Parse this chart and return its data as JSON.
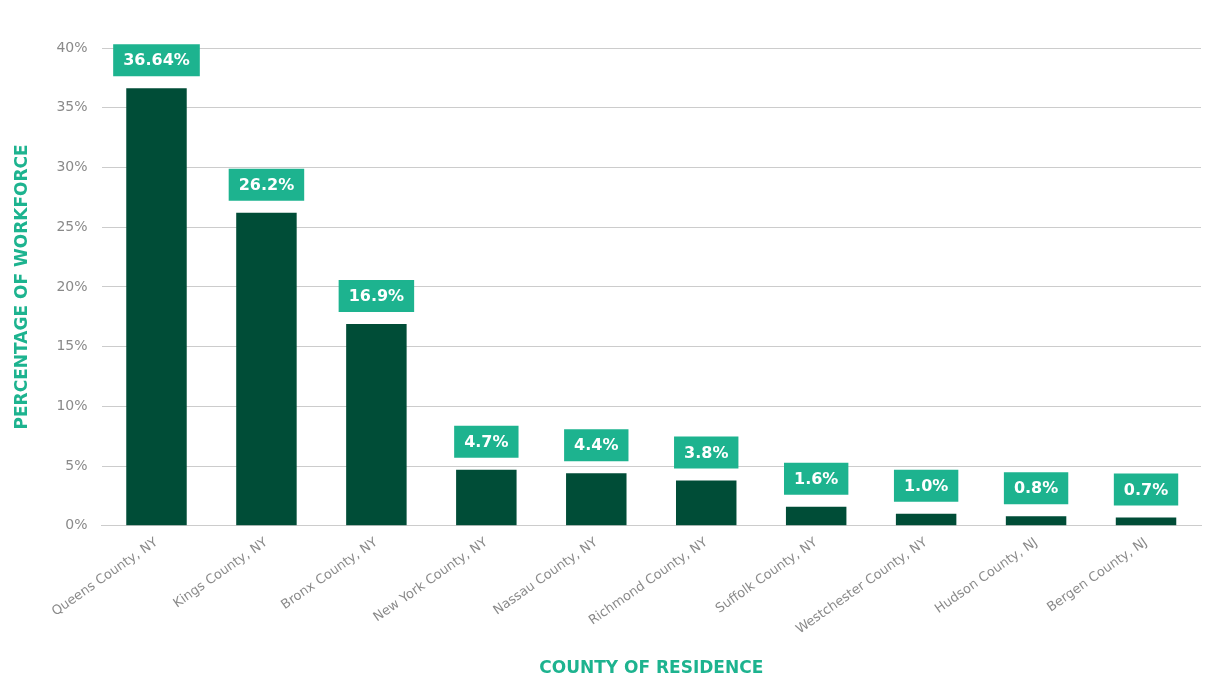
{
  "chart_data": {
    "type": "bar",
    "xlabel": "COUNTY OF RESIDENCE",
    "ylabel": "PERCENTAGE OF WORKFORCE",
    "categories": [
      "Queens County, NY",
      "Kings County, NY",
      "Bronx County, NY",
      "New York County, NY",
      "Nassau County, NY",
      "Richmond County, NY",
      "Suffolk County, NY",
      "Westchester County, NY",
      "Hudson County, NJ",
      "Bergen County, NJ"
    ],
    "values": [
      36.64,
      26.2,
      16.9,
      4.7,
      4.4,
      3.8,
      1.6,
      1.0,
      0.8,
      0.7
    ],
    "value_labels": [
      "36.64%",
      "26.2%",
      "16.9%",
      "4.7%",
      "4.4%",
      "3.8%",
      "1.6%",
      "1.0%",
      "0.8%",
      "0.7%"
    ],
    "color": "#004d37",
    "ylim": [
      0,
      40
    ],
    "yticks": [
      {
        "value": 0,
        "label": "0%"
      },
      {
        "value": 5,
        "label": "5%"
      },
      {
        "value": 10,
        "label": "10%"
      },
      {
        "value": 15,
        "label": "15%"
      },
      {
        "value": 20,
        "label": "20%"
      },
      {
        "value": 25,
        "label": "25%"
      },
      {
        "value": 30,
        "label": "30%"
      },
      {
        "value": 35,
        "label": "35%"
      },
      {
        "value": 40,
        "label": "40%"
      }
    ],
    "grid": "y",
    "legend": false
  }
}
